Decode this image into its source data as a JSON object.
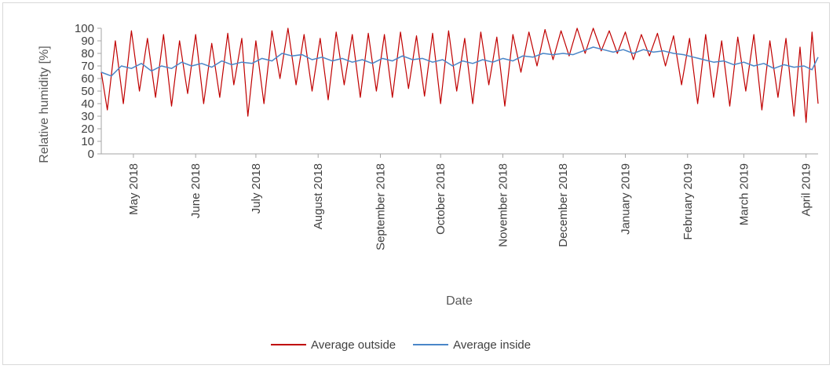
{
  "chart_data": {
    "type": "line",
    "title": "",
    "xlabel": "Date",
    "ylabel": "Relative humidity [%]",
    "ylim": [
      0,
      100
    ],
    "yticks": [
      0,
      10,
      20,
      30,
      40,
      50,
      60,
      70,
      80,
      90,
      100
    ],
    "x_range": [
      "2018-04-15",
      "2019-04-07"
    ],
    "x_ticks": [
      {
        "date": "2018-05-01",
        "label": "May 2018"
      },
      {
        "date": "2018-06-01",
        "label": "June 2018"
      },
      {
        "date": "2018-07-01",
        "label": "July 2018"
      },
      {
        "date": "2018-08-01",
        "label": "August 2018"
      },
      {
        "date": "2018-09-01",
        "label": "September 2018"
      },
      {
        "date": "2018-10-01",
        "label": "October 2018"
      },
      {
        "date": "2018-11-01",
        "label": "November 2018"
      },
      {
        "date": "2018-12-01",
        "label": "December 2018"
      },
      {
        "date": "2019-01-01",
        "label": "January 2019"
      },
      {
        "date": "2019-02-01",
        "label": "February 2019"
      },
      {
        "date": "2019-03-01",
        "label": "March 2019"
      },
      {
        "date": "2019-04-01",
        "label": "April 2019"
      }
    ],
    "grid": false,
    "legend_position": "bottom",
    "series": [
      {
        "name": "Average outside",
        "color": "#c00000",
        "points": [
          [
            "2018-04-15",
            65
          ],
          [
            "2018-04-18",
            35
          ],
          [
            "2018-04-22",
            90
          ],
          [
            "2018-04-26",
            40
          ],
          [
            "2018-04-30",
            98
          ],
          [
            "2018-05-04",
            50
          ],
          [
            "2018-05-08",
            92
          ],
          [
            "2018-05-12",
            45
          ],
          [
            "2018-05-16",
            95
          ],
          [
            "2018-05-20",
            38
          ],
          [
            "2018-05-24",
            90
          ],
          [
            "2018-05-28",
            48
          ],
          [
            "2018-06-01",
            95
          ],
          [
            "2018-06-05",
            40
          ],
          [
            "2018-06-09",
            88
          ],
          [
            "2018-06-13",
            45
          ],
          [
            "2018-06-17",
            96
          ],
          [
            "2018-06-20",
            55
          ],
          [
            "2018-06-24",
            92
          ],
          [
            "2018-06-27",
            30
          ],
          [
            "2018-07-01",
            90
          ],
          [
            "2018-07-05",
            40
          ],
          [
            "2018-07-09",
            98
          ],
          [
            "2018-07-13",
            60
          ],
          [
            "2018-07-17",
            100
          ],
          [
            "2018-07-21",
            55
          ],
          [
            "2018-07-25",
            95
          ],
          [
            "2018-07-29",
            50
          ],
          [
            "2018-08-02",
            92
          ],
          [
            "2018-08-06",
            43
          ],
          [
            "2018-08-10",
            97
          ],
          [
            "2018-08-14",
            55
          ],
          [
            "2018-08-18",
            95
          ],
          [
            "2018-08-22",
            45
          ],
          [
            "2018-08-26",
            96
          ],
          [
            "2018-08-30",
            50
          ],
          [
            "2018-09-03",
            95
          ],
          [
            "2018-09-07",
            45
          ],
          [
            "2018-09-11",
            97
          ],
          [
            "2018-09-15",
            52
          ],
          [
            "2018-09-19",
            94
          ],
          [
            "2018-09-23",
            46
          ],
          [
            "2018-09-27",
            96
          ],
          [
            "2018-10-01",
            40
          ],
          [
            "2018-10-05",
            98
          ],
          [
            "2018-10-09",
            50
          ],
          [
            "2018-10-13",
            92
          ],
          [
            "2018-10-17",
            40
          ],
          [
            "2018-10-21",
            97
          ],
          [
            "2018-10-25",
            55
          ],
          [
            "2018-10-29",
            93
          ],
          [
            "2018-11-02",
            38
          ],
          [
            "2018-11-06",
            95
          ],
          [
            "2018-11-10",
            65
          ],
          [
            "2018-11-14",
            97
          ],
          [
            "2018-11-18",
            70
          ],
          [
            "2018-11-22",
            99
          ],
          [
            "2018-11-26",
            75
          ],
          [
            "2018-11-30",
            98
          ],
          [
            "2018-12-04",
            78
          ],
          [
            "2018-12-08",
            100
          ],
          [
            "2018-12-12",
            80
          ],
          [
            "2018-12-16",
            100
          ],
          [
            "2018-12-20",
            82
          ],
          [
            "2018-12-24",
            98
          ],
          [
            "2018-12-28",
            80
          ],
          [
            "2019-01-01",
            97
          ],
          [
            "2019-01-05",
            75
          ],
          [
            "2019-01-09",
            95
          ],
          [
            "2019-01-13",
            78
          ],
          [
            "2019-01-17",
            96
          ],
          [
            "2019-01-21",
            70
          ],
          [
            "2019-01-25",
            94
          ],
          [
            "2019-01-29",
            55
          ],
          [
            "2019-02-02",
            92
          ],
          [
            "2019-02-06",
            40
          ],
          [
            "2019-02-10",
            95
          ],
          [
            "2019-02-14",
            45
          ],
          [
            "2019-02-18",
            90
          ],
          [
            "2019-02-22",
            38
          ],
          [
            "2019-02-26",
            93
          ],
          [
            "2019-03-02",
            50
          ],
          [
            "2019-03-06",
            95
          ],
          [
            "2019-03-10",
            35
          ],
          [
            "2019-03-14",
            90
          ],
          [
            "2019-03-18",
            45
          ],
          [
            "2019-03-22",
            92
          ],
          [
            "2019-03-26",
            30
          ],
          [
            "2019-03-29",
            85
          ],
          [
            "2019-04-01",
            25
          ],
          [
            "2019-04-04",
            97
          ],
          [
            "2019-04-07",
            40
          ]
        ]
      },
      {
        "name": "Average inside",
        "color": "#4a86c8",
        "points": [
          [
            "2018-04-15",
            65
          ],
          [
            "2018-04-20",
            62
          ],
          [
            "2018-04-25",
            70
          ],
          [
            "2018-04-30",
            68
          ],
          [
            "2018-05-05",
            72
          ],
          [
            "2018-05-10",
            66
          ],
          [
            "2018-05-15",
            70
          ],
          [
            "2018-05-20",
            68
          ],
          [
            "2018-05-25",
            73
          ],
          [
            "2018-05-30",
            70
          ],
          [
            "2018-06-04",
            72
          ],
          [
            "2018-06-09",
            69
          ],
          [
            "2018-06-14",
            74
          ],
          [
            "2018-06-19",
            71
          ],
          [
            "2018-06-24",
            73
          ],
          [
            "2018-06-29",
            72
          ],
          [
            "2018-07-04",
            76
          ],
          [
            "2018-07-09",
            74
          ],
          [
            "2018-07-14",
            80
          ],
          [
            "2018-07-19",
            78
          ],
          [
            "2018-07-24",
            79
          ],
          [
            "2018-07-29",
            75
          ],
          [
            "2018-08-03",
            77
          ],
          [
            "2018-08-08",
            74
          ],
          [
            "2018-08-13",
            76
          ],
          [
            "2018-08-18",
            73
          ],
          [
            "2018-08-23",
            75
          ],
          [
            "2018-08-28",
            72
          ],
          [
            "2018-09-02",
            76
          ],
          [
            "2018-09-07",
            74
          ],
          [
            "2018-09-12",
            78
          ],
          [
            "2018-09-17",
            75
          ],
          [
            "2018-09-22",
            76
          ],
          [
            "2018-09-27",
            73
          ],
          [
            "2018-10-02",
            75
          ],
          [
            "2018-10-07",
            70
          ],
          [
            "2018-10-12",
            74
          ],
          [
            "2018-10-17",
            72
          ],
          [
            "2018-10-22",
            75
          ],
          [
            "2018-10-27",
            73
          ],
          [
            "2018-11-01",
            76
          ],
          [
            "2018-11-06",
            74
          ],
          [
            "2018-11-11",
            78
          ],
          [
            "2018-11-16",
            77
          ],
          [
            "2018-11-21",
            80
          ],
          [
            "2018-11-26",
            79
          ],
          [
            "2018-12-01",
            80
          ],
          [
            "2018-12-06",
            79
          ],
          [
            "2018-12-11",
            82
          ],
          [
            "2018-12-16",
            85
          ],
          [
            "2018-12-21",
            83
          ],
          [
            "2018-12-26",
            81
          ],
          [
            "2018-12-31",
            83
          ],
          [
            "2019-01-05",
            80
          ],
          [
            "2019-01-10",
            83
          ],
          [
            "2019-01-15",
            81
          ],
          [
            "2019-01-20",
            82
          ],
          [
            "2019-01-25",
            80
          ],
          [
            "2019-01-30",
            79
          ],
          [
            "2019-02-04",
            77
          ],
          [
            "2019-02-09",
            75
          ],
          [
            "2019-02-14",
            73
          ],
          [
            "2019-02-19",
            74
          ],
          [
            "2019-02-24",
            71
          ],
          [
            "2019-03-01",
            73
          ],
          [
            "2019-03-06",
            70
          ],
          [
            "2019-03-11",
            72
          ],
          [
            "2019-03-16",
            68
          ],
          [
            "2019-03-21",
            71
          ],
          [
            "2019-03-26",
            69
          ],
          [
            "2019-03-31",
            70
          ],
          [
            "2019-04-04",
            67
          ],
          [
            "2019-04-07",
            77
          ]
        ]
      }
    ]
  }
}
